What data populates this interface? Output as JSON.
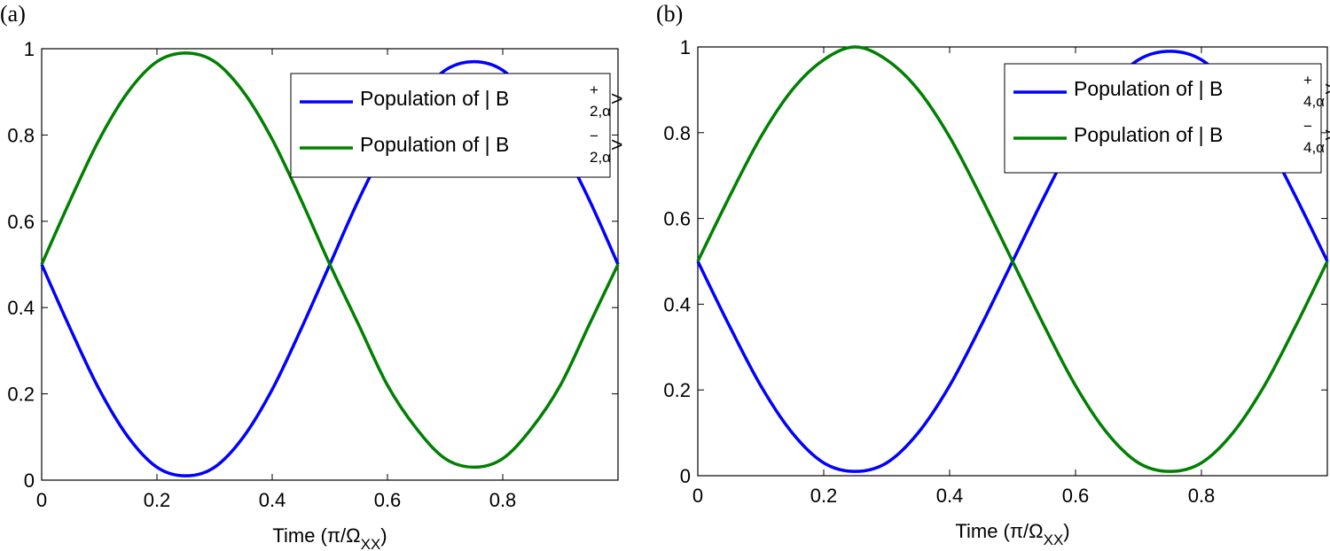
{
  "chart_data": [
    {
      "type": "line",
      "panel_label": "(a)",
      "xlabel": {
        "text": "Time (π/Ω",
        "sub": "XX",
        "end": ")"
      },
      "x": [
        0,
        0.05,
        0.1,
        0.15,
        0.2,
        0.25,
        0.3,
        0.35,
        0.4,
        0.45,
        0.5,
        0.55,
        0.6,
        0.65,
        0.7,
        0.75,
        0.8,
        0.85,
        0.9,
        0.95,
        1
      ],
      "xlim": [
        0,
        1
      ],
      "xticks": [
        0,
        0.2,
        0.4,
        0.6,
        0.8
      ],
      "ylim": [
        0,
        1
      ],
      "yticks": [
        0,
        0.2,
        0.4,
        0.6,
        0.8,
        1
      ],
      "series": [
        {
          "name": "Population of | B",
          "name_sup": "+",
          "name_sub": "2,α",
          "name_end": ">",
          "color": "#0000ff",
          "values": [
            0.5,
            0.35,
            0.21,
            0.1,
            0.03,
            0.01,
            0.03,
            0.1,
            0.21,
            0.35,
            0.5,
            0.65,
            0.78,
            0.88,
            0.95,
            0.97,
            0.95,
            0.88,
            0.78,
            0.65,
            0.5
          ]
        },
        {
          "name": "Population of | B",
          "name_sup": "−",
          "name_sub": "2,α",
          "name_end": ">",
          "color": "#008000",
          "values": [
            0.5,
            0.65,
            0.79,
            0.9,
            0.97,
            0.99,
            0.97,
            0.9,
            0.79,
            0.65,
            0.5,
            0.36,
            0.22,
            0.12,
            0.05,
            0.03,
            0.05,
            0.12,
            0.22,
            0.36,
            0.5
          ]
        }
      ]
    },
    {
      "type": "line",
      "panel_label": "(b)",
      "xlabel": {
        "text": "Time (π/Ω",
        "sub": "XX",
        "end": ")"
      },
      "x": [
        0,
        0.05,
        0.1,
        0.15,
        0.2,
        0.25,
        0.3,
        0.35,
        0.4,
        0.45,
        0.5,
        0.55,
        0.6,
        0.65,
        0.7,
        0.75,
        0.8,
        0.85,
        0.9,
        0.95,
        1
      ],
      "xlim": [
        0,
        1
      ],
      "xticks": [
        0,
        0.2,
        0.4,
        0.6,
        0.8
      ],
      "ylim": [
        0,
        1
      ],
      "yticks": [
        0,
        0.2,
        0.4,
        0.6,
        0.8,
        1
      ],
      "series": [
        {
          "name": "Population of | B",
          "name_sup": "+",
          "name_sub": "4,α",
          "name_end": ">",
          "color": "#0000ff",
          "values": [
            0.5,
            0.35,
            0.21,
            0.1,
            0.03,
            0.01,
            0.03,
            0.1,
            0.21,
            0.35,
            0.5,
            0.65,
            0.79,
            0.9,
            0.97,
            0.99,
            0.97,
            0.9,
            0.79,
            0.65,
            0.5
          ]
        },
        {
          "name": "Population of | B",
          "name_sup": "−",
          "name_sub": "4,α",
          "name_end": ">",
          "color": "#008000",
          "values": [
            0.5,
            0.65,
            0.79,
            0.9,
            0.97,
            1,
            0.97,
            0.9,
            0.79,
            0.65,
            0.5,
            0.35,
            0.21,
            0.1,
            0.03,
            0.01,
            0.03,
            0.1,
            0.21,
            0.35,
            0.5
          ]
        }
      ]
    }
  ]
}
